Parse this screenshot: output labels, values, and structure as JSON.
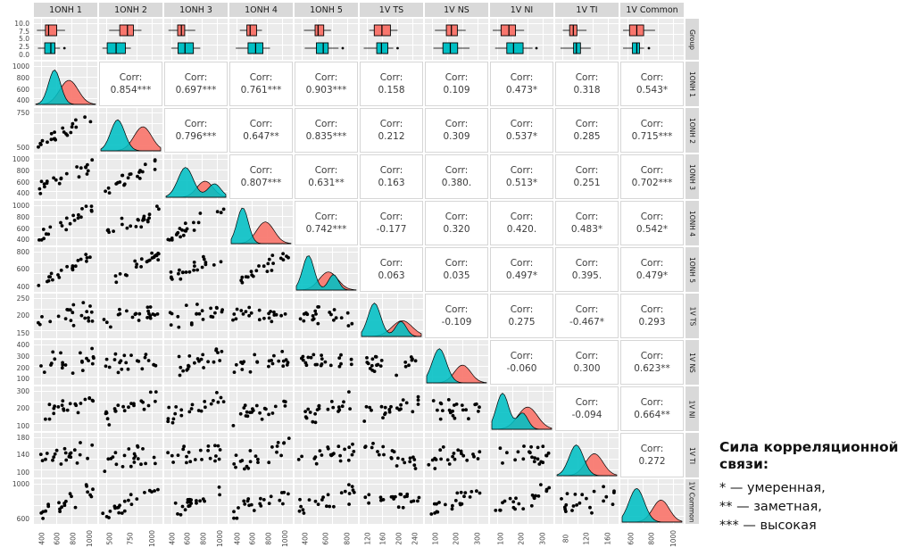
{
  "chart_data": {
    "type": "scatterplot-matrix",
    "title": "",
    "variables": [
      "1ONH 1",
      "1ONH 2",
      "1ONH 3",
      "1ONH 4",
      "1ONH 5",
      "1V TS",
      "1V NS",
      "1V NI",
      "1V TI",
      "1V Common"
    ],
    "group_strip_label": "Group",
    "corr_label": "Corr:",
    "group_yticks": [
      "10.0",
      "7.5",
      "5.0",
      "2.5",
      "0.0"
    ],
    "row_yticks": [
      [
        "1000",
        "800",
        "600",
        "400"
      ],
      [
        "750",
        "500"
      ],
      [
        "1000",
        "800",
        "600",
        "400"
      ],
      [
        "1000",
        "800",
        "600",
        "400"
      ],
      [
        "800",
        "600",
        "400"
      ],
      [
        "250",
        "200",
        "150"
      ],
      [
        "400",
        "300",
        "200",
        "100"
      ],
      [
        "300",
        "200",
        "100"
      ],
      [
        "180",
        "140",
        "100"
      ],
      [
        "1000",
        "600"
      ]
    ],
    "col_xticks": [
      [
        "400",
        "600",
        "800",
        "1000"
      ],
      [
        "500",
        "750",
        "1000"
      ],
      [
        "400",
        "600",
        "800",
        "1000"
      ],
      [
        "400",
        "600",
        "800",
        "1000"
      ],
      [
        "400",
        "600",
        "800"
      ],
      [
        "120",
        "160",
        "200",
        "240"
      ],
      [
        "100",
        "200",
        "300"
      ],
      [
        "100",
        "200",
        "300"
      ],
      [
        "80",
        "120",
        "160"
      ],
      [
        "600",
        "800",
        "1000"
      ]
    ],
    "correlations": [
      [
        null,
        "0.854***",
        "0.697***",
        "0.761***",
        "0.903***",
        "0.158",
        "0.109",
        "0.473*",
        "0.318",
        "0.543*"
      ],
      [
        null,
        null,
        "0.796***",
        "0.647**",
        "0.835***",
        "0.212",
        "0.309",
        "0.537*",
        "0.285",
        "0.715***"
      ],
      [
        null,
        null,
        null,
        "0.807***",
        "0.631**",
        "0.163",
        "0.380.",
        "0.513*",
        "0.251",
        "0.702***"
      ],
      [
        null,
        null,
        null,
        null,
        "0.742***",
        "-0.177",
        "0.320",
        "0.420.",
        "0.483*",
        "0.542*"
      ],
      [
        null,
        null,
        null,
        null,
        null,
        "0.063",
        "0.035",
        "0.497*",
        "0.395.",
        "0.479*"
      ],
      [
        null,
        null,
        null,
        null,
        null,
        null,
        "-0.109",
        "0.275",
        "-0.467*",
        "0.293"
      ],
      [
        null,
        null,
        null,
        null,
        null,
        null,
        null,
        "-0.060",
        "0.300",
        "0.623**"
      ],
      [
        null,
        null,
        null,
        null,
        null,
        null,
        null,
        null,
        "-0.094",
        "0.664**"
      ],
      [
        null,
        null,
        null,
        null,
        null,
        null,
        null,
        null,
        null,
        "0.272"
      ],
      [
        null,
        null,
        null,
        null,
        null,
        null,
        null,
        null,
        null,
        null
      ]
    ],
    "colors": {
      "red": "#F8766D",
      "teal": "#00BFC4",
      "panel_bg": "#EBEBEB",
      "strip_bg": "#D9D9D9",
      "point": "#000000"
    }
  },
  "legend": {
    "title": "Сила корреляционной связи:",
    "items": [
      "* — умеренная,",
      "** — заметная,",
      "*** — высокая"
    ]
  }
}
